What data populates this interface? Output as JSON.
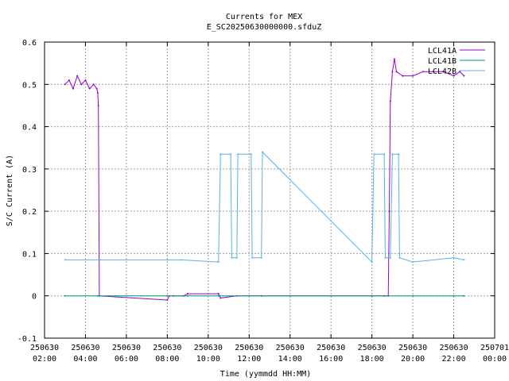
{
  "chart_data": {
    "type": "line",
    "title": "Currents for MEX",
    "subtitle": "E_SC20250630000000.sfduZ",
    "xlabel": "Time (yymmdd HH:MM)",
    "ylabel": "S/C Current (A)",
    "xlim": [
      "250630 02:00",
      "250701 00:00"
    ],
    "ylim": [
      -0.1,
      0.6
    ],
    "grid": true,
    "legend_position": "top-right",
    "x_ticks": [
      {
        "date": "250630",
        "time": "02:00",
        "hour": 2
      },
      {
        "date": "250630",
        "time": "04:00",
        "hour": 4
      },
      {
        "date": "250630",
        "time": "06:00",
        "hour": 6
      },
      {
        "date": "250630",
        "time": "08:00",
        "hour": 8
      },
      {
        "date": "250630",
        "time": "10:00",
        "hour": 10
      },
      {
        "date": "250630",
        "time": "12:00",
        "hour": 12
      },
      {
        "date": "250630",
        "time": "14:00",
        "hour": 14
      },
      {
        "date": "250630",
        "time": "16:00",
        "hour": 16
      },
      {
        "date": "250630",
        "time": "18:00",
        "hour": 18
      },
      {
        "date": "250630",
        "time": "20:00",
        "hour": 20
      },
      {
        "date": "250630",
        "time": "22:00",
        "hour": 22
      },
      {
        "date": "250701",
        "time": "00:00",
        "hour": 24
      }
    ],
    "y_ticks": [
      "-0.1",
      "0",
      "0.1",
      "0.2",
      "0.3",
      "0.4",
      "0.5",
      "0.6"
    ],
    "series": [
      {
        "name": "LCL41A",
        "color": "#9400d3",
        "points": [
          [
            3.0,
            0.5
          ],
          [
            3.2,
            0.51
          ],
          [
            3.4,
            0.49
          ],
          [
            3.6,
            0.52
          ],
          [
            3.8,
            0.5
          ],
          [
            4.0,
            0.51
          ],
          [
            4.2,
            0.49
          ],
          [
            4.4,
            0.5
          ],
          [
            4.55,
            0.49
          ],
          [
            4.6,
            0.48
          ],
          [
            4.63,
            0.45
          ],
          [
            4.68,
            0.0
          ],
          [
            8.0,
            -0.01
          ],
          [
            8.1,
            0.0
          ],
          [
            8.3,
            0.0
          ],
          [
            8.8,
            0.0
          ],
          [
            9.0,
            0.005
          ],
          [
            10.5,
            0.005
          ],
          [
            10.6,
            -0.005
          ],
          [
            11.4,
            0.0
          ],
          [
            12.6,
            0.0
          ],
          [
            18.0,
            0.0
          ],
          [
            18.6,
            0.0
          ],
          [
            18.8,
            0.0
          ],
          [
            18.85,
            0.2
          ],
          [
            18.9,
            0.46
          ],
          [
            19.0,
            0.53
          ],
          [
            19.1,
            0.56
          ],
          [
            19.2,
            0.53
          ],
          [
            19.5,
            0.52
          ],
          [
            20.0,
            0.52
          ],
          [
            20.5,
            0.53
          ],
          [
            21.0,
            0.53
          ],
          [
            21.5,
            0.53
          ],
          [
            22.0,
            0.52
          ],
          [
            22.3,
            0.53
          ],
          [
            22.5,
            0.52
          ]
        ]
      },
      {
        "name": "LCL41B",
        "color": "#009e73",
        "points": [
          [
            3.0,
            0.0
          ],
          [
            4.6,
            0.0
          ],
          [
            4.7,
            0.0
          ],
          [
            8.0,
            0.0
          ],
          [
            9.0,
            0.0
          ],
          [
            10.5,
            0.0
          ],
          [
            12.6,
            0.0
          ],
          [
            18.0,
            0.0
          ],
          [
            20.0,
            0.0
          ],
          [
            22.0,
            0.0
          ],
          [
            22.5,
            0.0
          ]
        ]
      },
      {
        "name": "LCL42B",
        "color": "#56b4e9",
        "points": [
          [
            3.0,
            0.085
          ],
          [
            4.7,
            0.085
          ],
          [
            8.0,
            0.085
          ],
          [
            8.7,
            0.085
          ],
          [
            10.5,
            0.08
          ],
          [
            10.6,
            0.335
          ],
          [
            11.1,
            0.335
          ],
          [
            11.15,
            0.09
          ],
          [
            11.4,
            0.09
          ],
          [
            11.45,
            0.335
          ],
          [
            12.1,
            0.335
          ],
          [
            12.15,
            0.09
          ],
          [
            12.6,
            0.09
          ],
          [
            12.65,
            0.34
          ],
          [
            18.0,
            0.08
          ],
          [
            18.1,
            0.335
          ],
          [
            18.6,
            0.335
          ],
          [
            18.65,
            0.09
          ],
          [
            18.9,
            0.09
          ],
          [
            19.0,
            0.335
          ],
          [
            19.3,
            0.335
          ],
          [
            19.35,
            0.09
          ],
          [
            20.0,
            0.08
          ],
          [
            22.0,
            0.09
          ],
          [
            22.5,
            0.085
          ]
        ]
      }
    ]
  }
}
